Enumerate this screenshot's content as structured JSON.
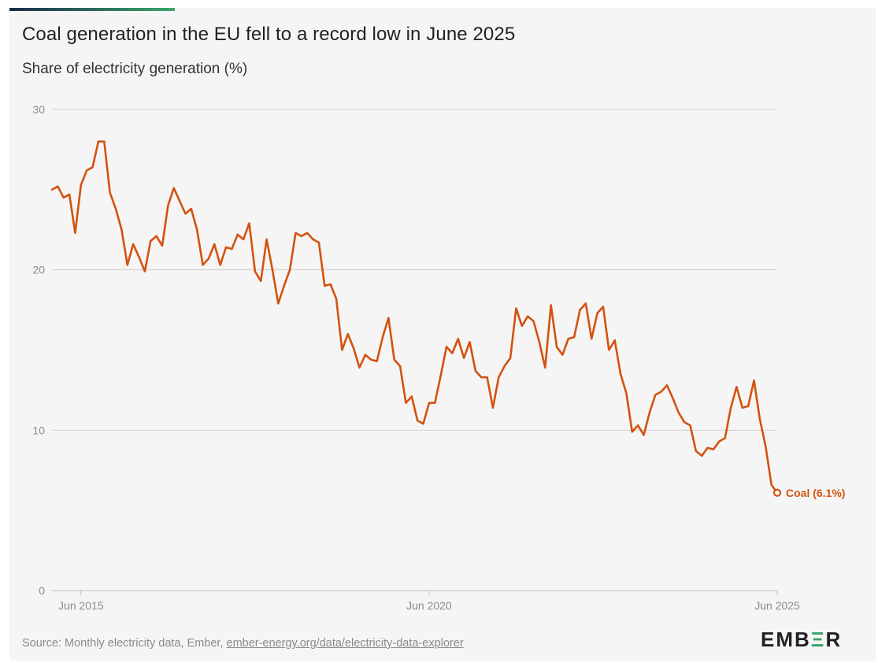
{
  "colors": {
    "line": "#d4520f",
    "grid": "#cfcfcf",
    "axis_text": "#8a8a8a",
    "accent_start": "#1b2a4a",
    "accent_end": "#3ba86c"
  },
  "header": {
    "title": "Coal generation in the EU fell to a record low in June 2025",
    "subtitle": "Share of electricity generation (%)"
  },
  "footer": {
    "source_prefix": "Source: Monthly electricity data, Ember, ",
    "source_link": "ember-energy.org/data/electricity-data-explorer",
    "logo_pre": "EMB",
    "logo_mark": "Ξ",
    "logo_post": "R"
  },
  "chart_data": {
    "type": "line",
    "title": "Coal generation in the EU fell to a record low in June 2025",
    "subtitle": "Share of electricity generation (%)",
    "xlabel": "",
    "ylabel": "",
    "x_start": "2015-01",
    "x_end": "2025-06",
    "ylim": [
      0,
      30
    ],
    "y_ticks": [
      0,
      10,
      20,
      30
    ],
    "x_ticks": [
      {
        "label": "Jun 2015",
        "date": "2015-06"
      },
      {
        "label": "Jun 2020",
        "date": "2020-06"
      },
      {
        "label": "Jun 2025",
        "date": "2025-06"
      }
    ],
    "grid": true,
    "series": [
      {
        "name": "Coal",
        "end_label": "Coal (6.1%)",
        "values": [
          25.0,
          25.2,
          24.5,
          24.7,
          22.3,
          25.3,
          26.2,
          26.4,
          28.0,
          28.0,
          24.8,
          23.8,
          22.5,
          20.3,
          21.6,
          20.8,
          19.9,
          21.8,
          22.1,
          21.5,
          24.0,
          25.1,
          24.3,
          23.5,
          23.8,
          22.5,
          20.3,
          20.7,
          21.6,
          20.3,
          21.4,
          21.3,
          22.2,
          21.9,
          22.9,
          19.9,
          19.3,
          21.9,
          20.0,
          17.9,
          19.0,
          20.0,
          22.3,
          22.1,
          22.3,
          21.9,
          21.7,
          19.0,
          19.1,
          18.2,
          15.0,
          16.0,
          15.1,
          13.9,
          14.7,
          14.4,
          14.3,
          15.8,
          17.0,
          14.4,
          14.0,
          11.7,
          12.1,
          10.6,
          10.4,
          11.7,
          11.7,
          13.4,
          15.2,
          14.8,
          15.7,
          14.5,
          15.5,
          13.7,
          13.3,
          13.3,
          11.4,
          13.3,
          14.0,
          14.5,
          17.6,
          16.5,
          17.1,
          16.8,
          15.5,
          13.9,
          17.8,
          15.2,
          14.7,
          15.7,
          15.8,
          17.5,
          17.9,
          15.7,
          17.3,
          17.7,
          15.0,
          15.6,
          13.5,
          12.3,
          9.9,
          10.3,
          9.7,
          11.1,
          12.2,
          12.4,
          12.8,
          12.0,
          11.1,
          10.5,
          10.3,
          8.7,
          8.4,
          8.9,
          8.8,
          9.3,
          9.5,
          11.4,
          12.7,
          11.4,
          11.5,
          13.1,
          10.7,
          9.0,
          6.6,
          6.1
        ]
      }
    ]
  }
}
